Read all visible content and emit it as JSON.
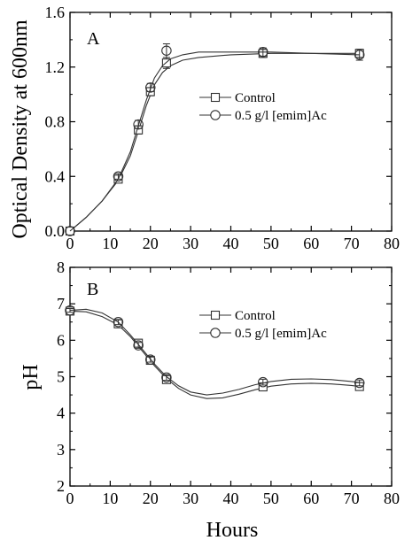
{
  "chart_data": [
    {
      "type": "line",
      "panel_label": "A",
      "ylabel": "Optical Density at 600nm",
      "xlabel": "",
      "xlim": [
        0,
        80
      ],
      "ylim": [
        0.0,
        1.6
      ],
      "xticks": [
        "0",
        "10",
        "20",
        "30",
        "40",
        "50",
        "60",
        "70",
        "80"
      ],
      "yticks": [
        "0.0",
        "0.4",
        "0.8",
        "1.2",
        "1.6"
      ],
      "legend_position": "center-right",
      "grid": false,
      "series": [
        {
          "name": "Control",
          "marker": "square",
          "x": [
            0,
            12,
            17,
            20,
            24,
            48,
            72
          ],
          "y": [
            0.0,
            0.38,
            0.74,
            1.02,
            1.23,
            1.3,
            1.3
          ],
          "err": [
            0,
            0.02,
            0.03,
            0.03,
            0.04,
            0.03,
            0.03
          ],
          "fit": [
            [
              0,
              0.0
            ],
            [
              4,
              0.1
            ],
            [
              8,
              0.22
            ],
            [
              12,
              0.37
            ],
            [
              15,
              0.55
            ],
            [
              17,
              0.73
            ],
            [
              19,
              0.92
            ],
            [
              21,
              1.07
            ],
            [
              23,
              1.16
            ],
            [
              25,
              1.21
            ],
            [
              28,
              1.25
            ],
            [
              32,
              1.27
            ],
            [
              40,
              1.29
            ],
            [
              50,
              1.3
            ],
            [
              60,
              1.3
            ],
            [
              72,
              1.3
            ]
          ]
        },
        {
          "name": "0.5 g/l [emim]Ac",
          "marker": "circle",
          "x": [
            0,
            12,
            17,
            20,
            24,
            48,
            72
          ],
          "y": [
            0.0,
            0.4,
            0.78,
            1.05,
            1.32,
            1.31,
            1.29
          ],
          "err": [
            0,
            0.02,
            0.03,
            0.03,
            0.05,
            0.03,
            0.04
          ],
          "fit": [
            [
              0,
              0.0
            ],
            [
              4,
              0.1
            ],
            [
              8,
              0.22
            ],
            [
              12,
              0.38
            ],
            [
              15,
              0.58
            ],
            [
              17,
              0.77
            ],
            [
              19,
              0.96
            ],
            [
              21,
              1.12
            ],
            [
              23,
              1.21
            ],
            [
              25,
              1.26
            ],
            [
              28,
              1.29
            ],
            [
              32,
              1.31
            ],
            [
              40,
              1.31
            ],
            [
              50,
              1.31
            ],
            [
              60,
              1.3
            ],
            [
              72,
              1.29
            ]
          ]
        }
      ]
    },
    {
      "type": "line",
      "panel_label": "B",
      "ylabel": "pH",
      "xlabel": "Hours",
      "xlim": [
        0,
        80
      ],
      "ylim": [
        2,
        8
      ],
      "xticks": [
        "0",
        "10",
        "20",
        "30",
        "40",
        "50",
        "60",
        "70",
        "80"
      ],
      "yticks": [
        "2",
        "3",
        "4",
        "5",
        "6",
        "7",
        "8"
      ],
      "legend_position": "top-right",
      "grid": false,
      "series": [
        {
          "name": "Control",
          "marker": "square",
          "x": [
            0,
            12,
            17,
            20,
            24,
            48,
            72
          ],
          "y": [
            6.8,
            6.45,
            5.92,
            5.45,
            4.92,
            4.72,
            4.73
          ],
          "err": [
            0.05,
            0.07,
            0.08,
            0.07,
            0.08,
            0.08,
            0.08
          ],
          "fit": [
            [
              0,
              6.8
            ],
            [
              4,
              6.78
            ],
            [
              8,
              6.65
            ],
            [
              12,
              6.42
            ],
            [
              15,
              6.1
            ],
            [
              18,
              5.7
            ],
            [
              21,
              5.3
            ],
            [
              24,
              4.95
            ],
            [
              27,
              4.68
            ],
            [
              30,
              4.5
            ],
            [
              34,
              4.4
            ],
            [
              38,
              4.42
            ],
            [
              42,
              4.52
            ],
            [
              46,
              4.64
            ],
            [
              50,
              4.74
            ],
            [
              55,
              4.8
            ],
            [
              60,
              4.82
            ],
            [
              65,
              4.8
            ],
            [
              70,
              4.76
            ],
            [
              72,
              4.73
            ]
          ]
        },
        {
          "name": "0.5 g/l [emim]Ac",
          "marker": "circle",
          "x": [
            0,
            12,
            17,
            20,
            24,
            48,
            72
          ],
          "y": [
            6.82,
            6.5,
            5.86,
            5.47,
            4.98,
            4.85,
            4.83
          ],
          "err": [
            0.05,
            0.07,
            0.08,
            0.07,
            0.08,
            0.08,
            0.08
          ],
          "fit": [
            [
              0,
              6.82
            ],
            [
              4,
              6.85
            ],
            [
              8,
              6.75
            ],
            [
              12,
              6.5
            ],
            [
              15,
              6.15
            ],
            [
              18,
              5.75
            ],
            [
              21,
              5.35
            ],
            [
              24,
              5.0
            ],
            [
              27,
              4.75
            ],
            [
              30,
              4.58
            ],
            [
              34,
              4.5
            ],
            [
              38,
              4.55
            ],
            [
              42,
              4.65
            ],
            [
              46,
              4.78
            ],
            [
              50,
              4.87
            ],
            [
              55,
              4.93
            ],
            [
              60,
              4.94
            ],
            [
              65,
              4.92
            ],
            [
              70,
              4.87
            ],
            [
              72,
              4.84
            ]
          ]
        }
      ]
    }
  ]
}
